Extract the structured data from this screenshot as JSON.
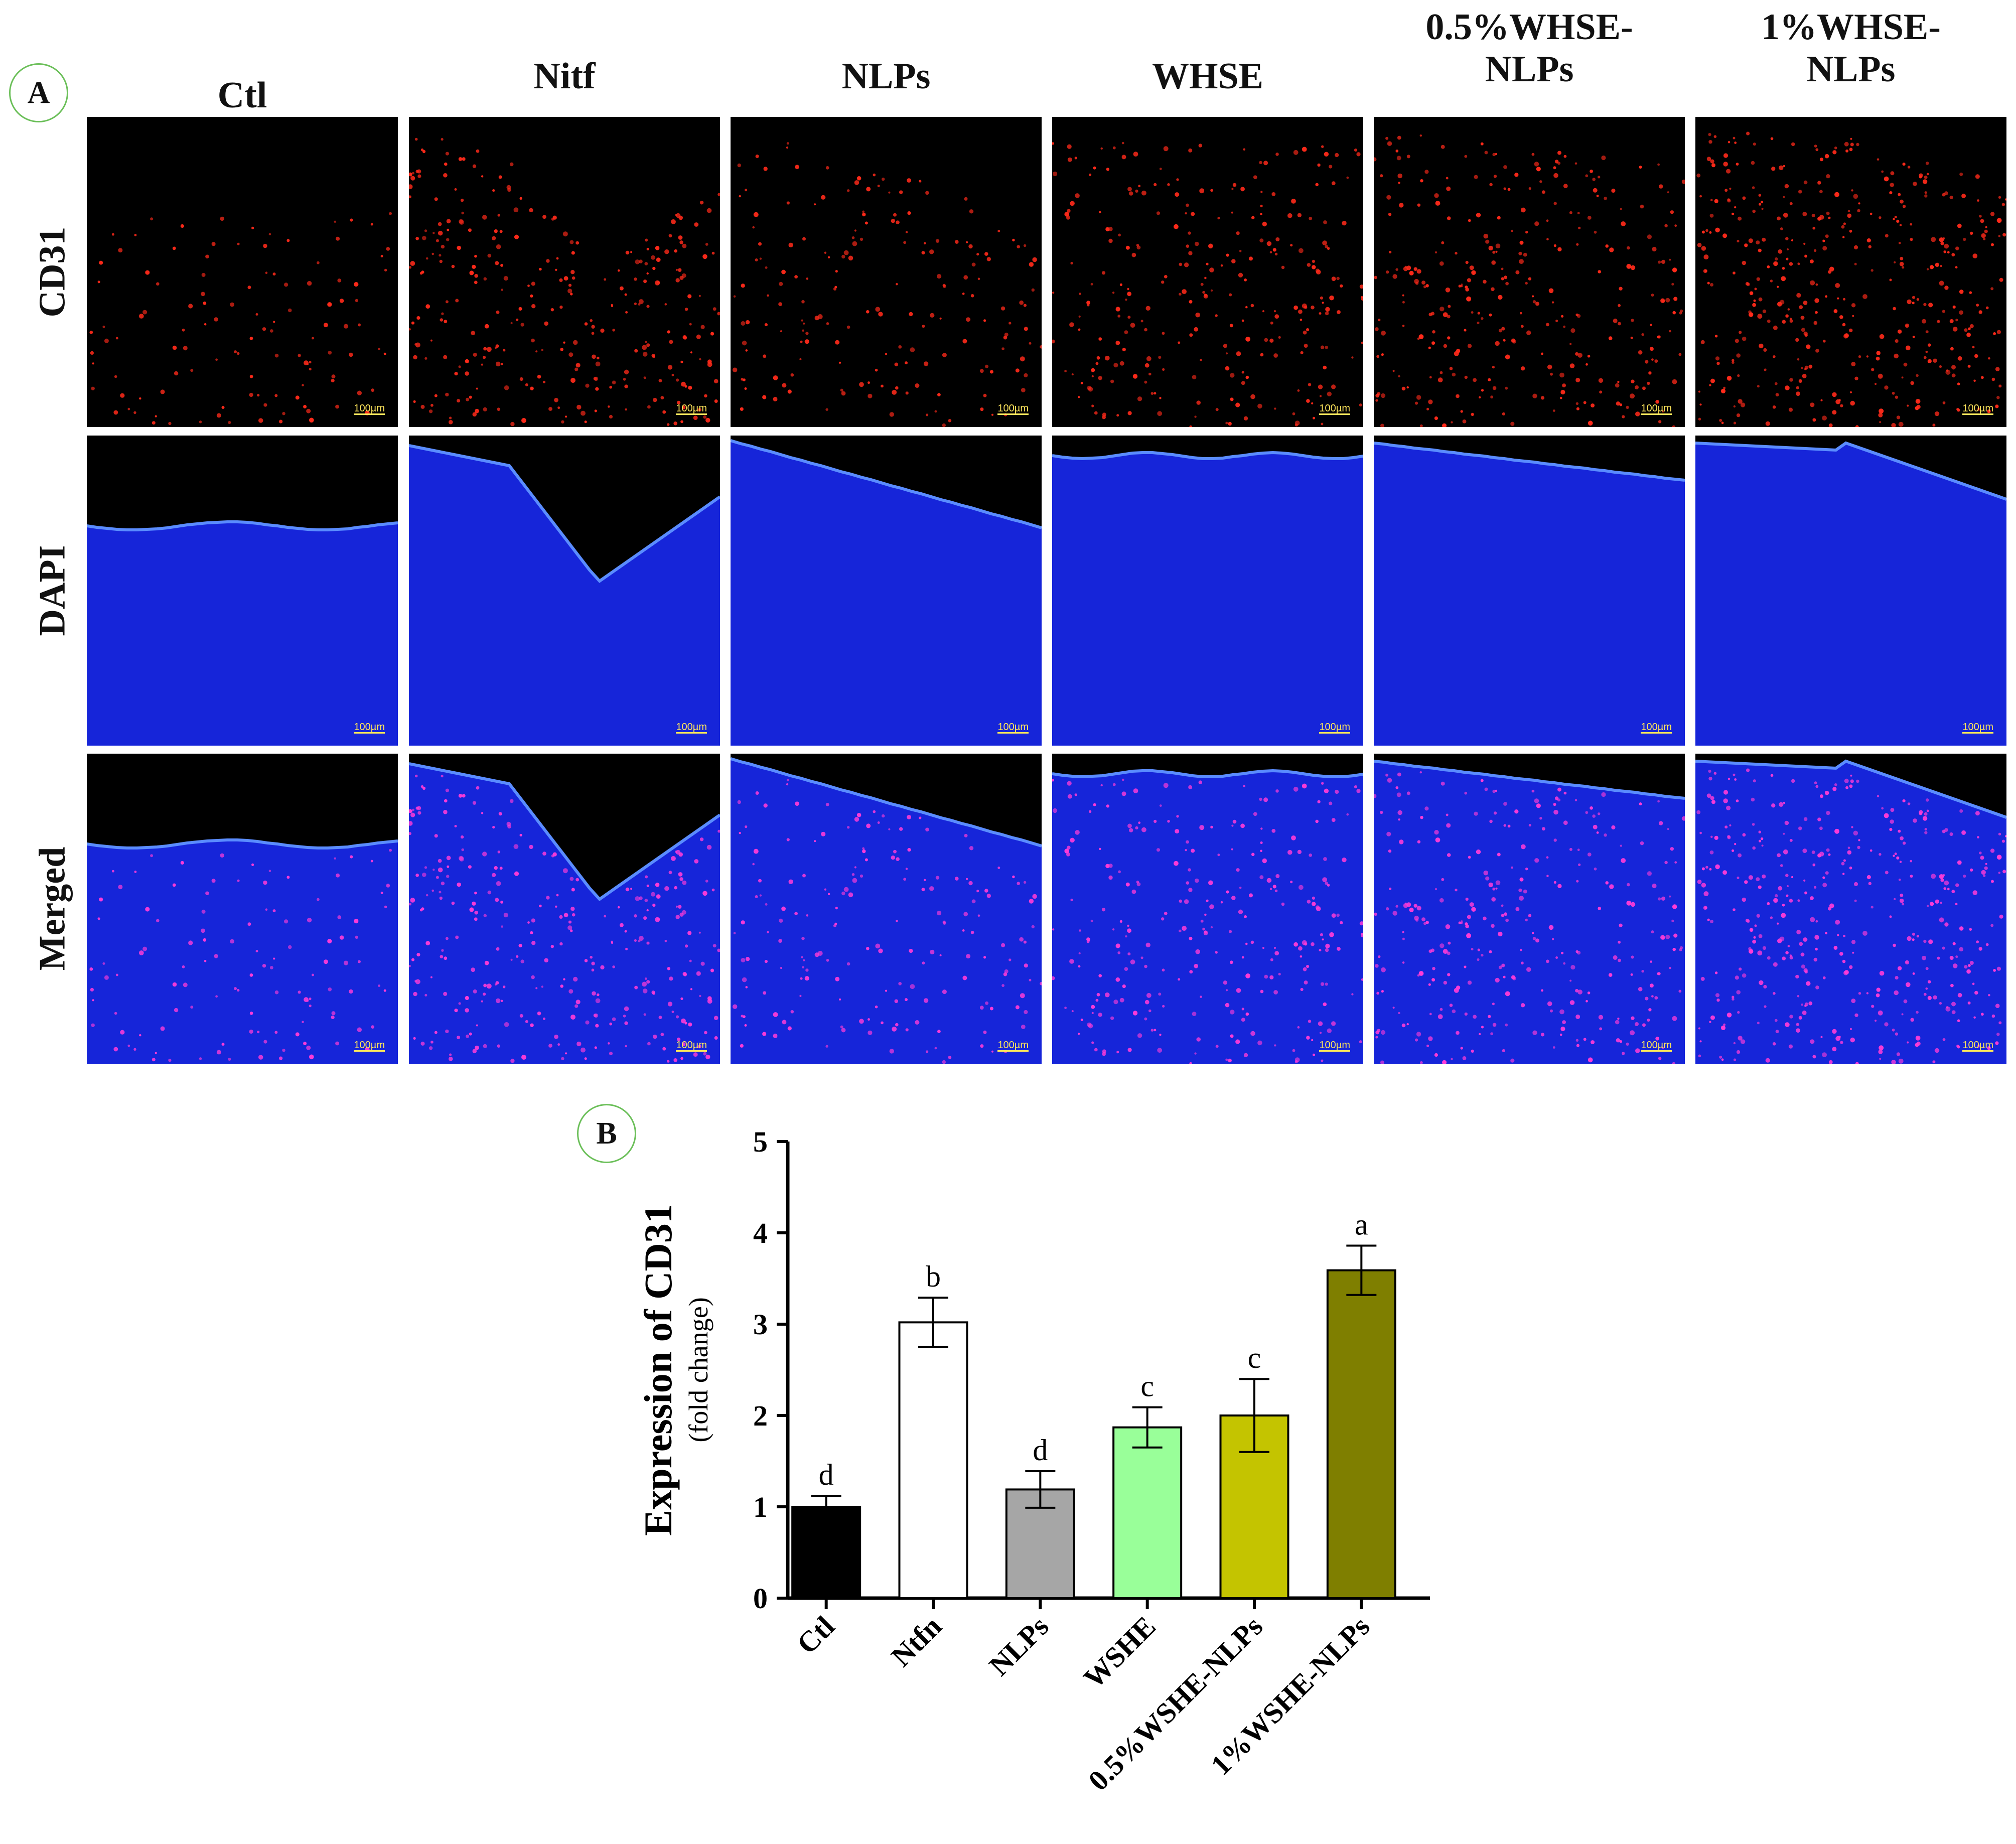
{
  "panels": {
    "a": "A",
    "b": "B"
  },
  "columns": [
    "Ctl",
    "Nitf",
    "NLPs",
    "WHSE",
    "0.5%WHSE-\nNLPs",
    "1%WHSE-\nNLPs"
  ],
  "rows": [
    "CD31",
    "DAPI",
    "Merged"
  ],
  "scale_bar": "100µm",
  "colors": {
    "cd31": "#ff2a1a",
    "dapi": "#1a2bff",
    "merged_dots": "#ff3bd8",
    "badge_border": "#6bbf59"
  },
  "chart_data": {
    "type": "bar",
    "categories": [
      "Ctl",
      "Ntfn",
      "NLPs",
      "WSHE",
      "0.5%WSHE-NLPs",
      "1%WSHE-NLPs"
    ],
    "values": [
      1.0,
      3.02,
      1.19,
      1.87,
      2.0,
      3.59
    ],
    "errors": [
      0.12,
      0.27,
      0.2,
      0.22,
      0.4,
      0.27
    ],
    "significance": [
      "d",
      "b",
      "d",
      "c",
      "c",
      "a"
    ],
    "bar_colors": [
      "#000000",
      "#ffffff",
      "#a6a6a6",
      "#99ff99",
      "#c4c400",
      "#7f7f00"
    ],
    "ylabel": "Expression of CD31",
    "ylabel_sub": "(fold change)",
    "ylim": [
      0,
      5
    ],
    "yticks": [
      0,
      1,
      2,
      3,
      4,
      5
    ]
  }
}
